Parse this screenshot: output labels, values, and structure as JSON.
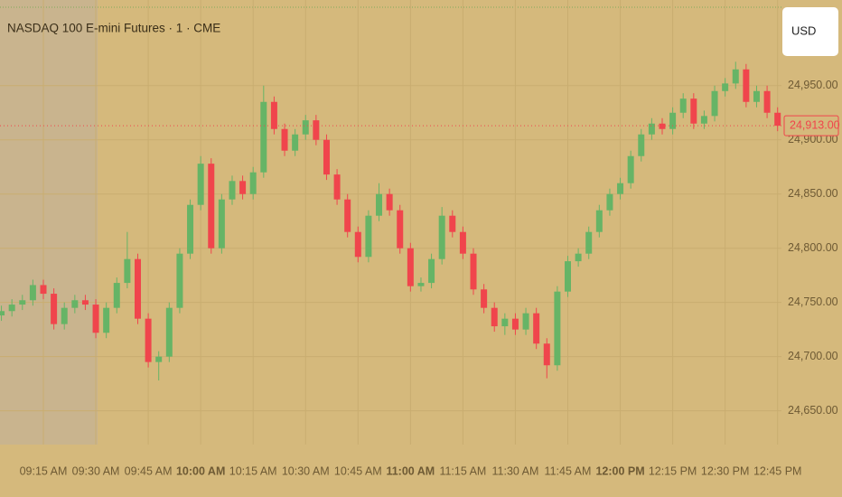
{
  "chart_data": {
    "type": "candlestick",
    "title": "NASDAQ 100 E-mini Futures · 1 · CME",
    "x": [
      "09:03 AM",
      "09:06 AM",
      "09:09 AM",
      "09:12 AM",
      "09:15 AM",
      "09:18 AM",
      "09:21 AM",
      "09:24 AM",
      "09:27 AM",
      "09:30 AM",
      "09:33 AM",
      "09:36 AM",
      "09:39 AM",
      "09:42 AM",
      "09:45 AM",
      "09:48 AM",
      "09:51 AM",
      "09:54 AM",
      "09:57 AM",
      "10:00 AM",
      "10:03 AM",
      "10:06 AM",
      "10:09 AM",
      "10:12 AM",
      "10:15 AM",
      "10:18 AM",
      "10:21 AM",
      "10:24 AM",
      "10:27 AM",
      "10:30 AM",
      "10:33 AM",
      "10:36 AM",
      "10:39 AM",
      "10:42 AM",
      "10:45 AM",
      "10:48 AM",
      "10:51 AM",
      "10:54 AM",
      "10:57 AM",
      "11:00 AM",
      "11:03 AM",
      "11:06 AM",
      "11:09 AM",
      "11:12 AM",
      "11:15 AM",
      "11:18 AM",
      "11:21 AM",
      "11:24 AM",
      "11:27 AM",
      "11:30 AM",
      "11:33 AM",
      "11:36 AM",
      "11:39 AM",
      "11:42 AM",
      "11:45 AM",
      "11:48 AM",
      "11:51 AM",
      "11:54 AM",
      "11:57 AM",
      "12:00 PM",
      "12:03 PM",
      "12:06 PM",
      "12:09 PM",
      "12:12 PM",
      "12:15 PM",
      "12:18 PM",
      "12:21 PM",
      "12:24 PM",
      "12:27 PM",
      "12:30 PM",
      "12:33 PM",
      "12:36 PM",
      "12:39 PM",
      "12:42 PM",
      "12:45 PM"
    ],
    "open": [
      24738,
      24742,
      24748,
      24752,
      24766,
      24758,
      24730,
      24745,
      24752,
      24748,
      24722,
      24745,
      24768,
      24790,
      24735,
      24695,
      24700,
      24745,
      24795,
      24840,
      24878,
      24800,
      24845,
      24862,
      24850,
      24870,
      24935,
      24910,
      24890,
      24905,
      24918,
      24900,
      24868,
      24845,
      24815,
      24792,
      24830,
      24850,
      24835,
      24800,
      24765,
      24768,
      24790,
      24830,
      24815,
      24795,
      24762,
      24745,
      24728,
      24735,
      24725,
      24740,
      24712,
      24692,
      24760,
      24788,
      24795,
      24815,
      24835,
      24850,
      24860,
      24885,
      24905,
      24915,
      24910,
      24925,
      24938,
      24915,
      24922,
      24945,
      24952,
      24965,
      24935,
      24945,
      24925
    ],
    "high": [
      24747,
      24753,
      24757,
      24771,
      24771,
      24763,
      24750,
      24757,
      24757,
      24753,
      24750,
      24773,
      24815,
      24795,
      24740,
      24705,
      24750,
      24800,
      24845,
      24885,
      24883,
      24850,
      24867,
      24867,
      24875,
      24950,
      24940,
      24915,
      24910,
      24923,
      24923,
      24905,
      24873,
      24850,
      24820,
      24835,
      24860,
      24855,
      24840,
      24805,
      24773,
      24795,
      24838,
      24835,
      24820,
      24800,
      24767,
      24750,
      24740,
      24740,
      24745,
      24745,
      24717,
      24765,
      24793,
      24800,
      24820,
      24840,
      24855,
      24865,
      24890,
      24910,
      24920,
      24920,
      24930,
      24943,
      24943,
      24927,
      24950,
      24957,
      24972,
      24970,
      24950,
      24950,
      24930
    ],
    "low": [
      24733,
      24737,
      24743,
      24747,
      24753,
      24725,
      24725,
      24740,
      24743,
      24717,
      24717,
      24740,
      24763,
      24730,
      24690,
      24678,
      24695,
      24740,
      24790,
      24835,
      24795,
      24795,
      24840,
      24845,
      24845,
      24865,
      24905,
      24885,
      24885,
      24900,
      24895,
      24863,
      24840,
      24810,
      24787,
      24787,
      24825,
      24830,
      24795,
      24760,
      24760,
      24763,
      24785,
      24810,
      24790,
      24757,
      24740,
      24723,
      24720,
      24720,
      24720,
      24707,
      24680,
      24687,
      24755,
      24783,
      24790,
      24810,
      24830,
      24845,
      24855,
      24880,
      24900,
      24905,
      24905,
      24920,
      24910,
      24910,
      24917,
      24940,
      24947,
      24930,
      24930,
      24920,
      24908
    ],
    "close": [
      24742,
      24748,
      24752,
      24766,
      24758,
      24730,
      24745,
      24752,
      24748,
      24722,
      24745,
      24768,
      24790,
      24735,
      24695,
      24700,
      24745,
      24795,
      24840,
      24878,
      24800,
      24845,
      24862,
      24850,
      24870,
      24935,
      24910,
      24890,
      24905,
      24918,
      24900,
      24868,
      24845,
      24815,
      24792,
      24830,
      24850,
      24835,
      24800,
      24765,
      24768,
      24790,
      24830,
      24815,
      24795,
      24762,
      24745,
      24728,
      24735,
      24725,
      24740,
      24712,
      24692,
      24760,
      24788,
      24795,
      24815,
      24835,
      24850,
      24860,
      24885,
      24905,
      24915,
      24910,
      24925,
      24938,
      24915,
      24922,
      24945,
      24952,
      24965,
      24935,
      24945,
      24925,
      24913
    ],
    "up_color": "#66b466",
    "down_color": "#f0454c",
    "ylim": [
      24608,
      25029
    ],
    "yticks": [
      {
        "value": 24650,
        "label": "24,650.00"
      },
      {
        "value": 24700,
        "label": "24,700.00"
      },
      {
        "value": 24750,
        "label": "24,750.00"
      },
      {
        "value": 24800,
        "label": "24,800.00"
      },
      {
        "value": 24850,
        "label": "24,850.00"
      },
      {
        "value": 24900,
        "label": "24,900.00"
      },
      {
        "value": 24950,
        "label": "24,950.00"
      }
    ],
    "xticks": [
      "09:15 AM",
      "09:30 AM",
      "09:45 AM",
      "10:00 AM",
      "10:15 AM",
      "10:30 AM",
      "10:45 AM",
      "11:00 AM",
      "11:15 AM",
      "11:30 AM",
      "11:45 AM",
      "12:00 PM",
      "12:15 PM",
      "12:30 PM",
      "12:45 PM"
    ],
    "grid": true,
    "last_price": {
      "value": 24913,
      "label": "24,913.00"
    }
  },
  "toolbar": {
    "currency": "USD"
  }
}
